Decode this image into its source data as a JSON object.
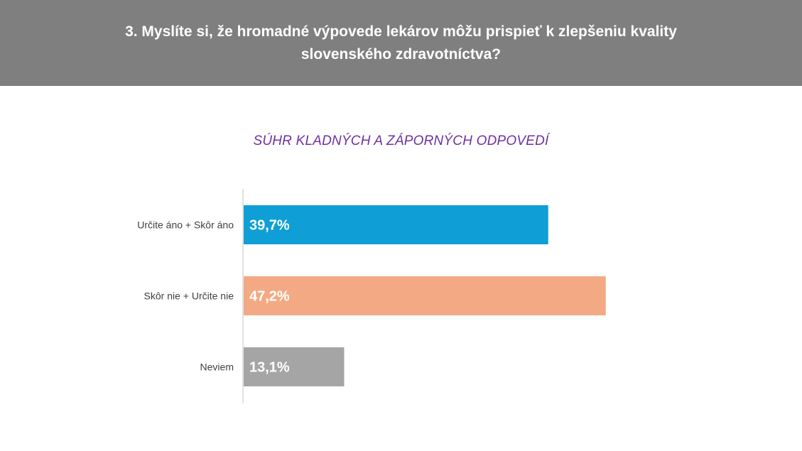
{
  "header": {
    "title_line1": "3. Myslíte si, že hromadné výpovede lekárov môžu prispieť k zlepšeniu kvality",
    "title_line2": "slovenského zdravotníctva?"
  },
  "chart_data": {
    "type": "bar",
    "orientation": "horizontal",
    "title": "SÚHR KLADNÝCH A ZÁPORNÝCH ODPOVEDÍ",
    "categories": [
      "Určite áno + Skôr áno",
      "Skôr nie + Určite nie",
      "Neviem"
    ],
    "values": [
      39.7,
      47.2,
      13.1
    ],
    "data_labels": [
      "39,7%",
      "47,2%",
      "13,1%"
    ],
    "colors": [
      "#0f9fd6",
      "#f3aa84",
      "#a5a5a5"
    ],
    "xlim": [
      0,
      60
    ],
    "grid": false,
    "legend": "none",
    "axis_color": "#d9d9d9",
    "label_color": "#ffffff",
    "category_color": "#404040"
  }
}
